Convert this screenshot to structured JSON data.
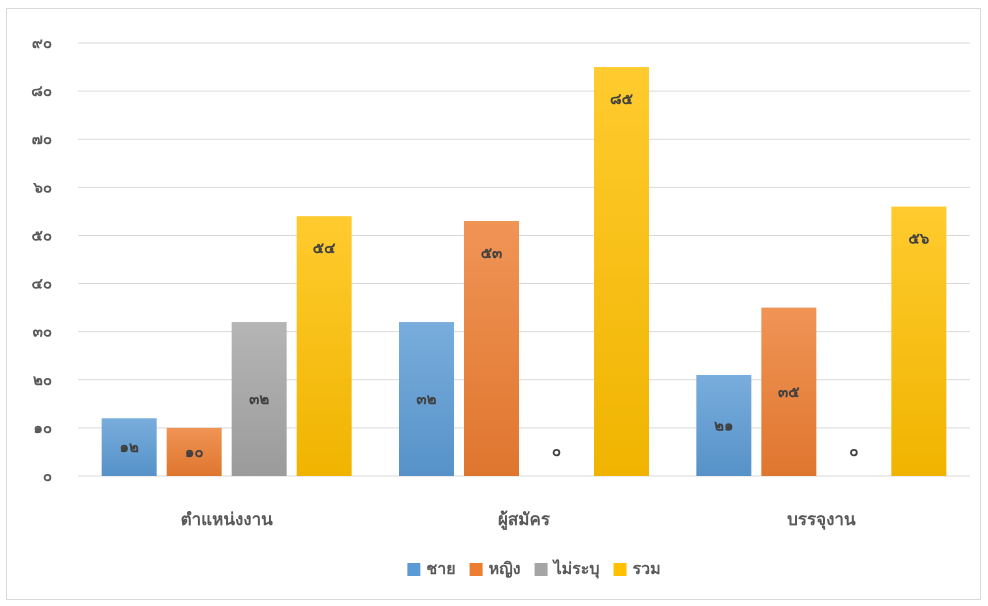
{
  "chart_data": {
    "type": "bar",
    "title": "",
    "xlabel": "",
    "ylabel": "",
    "ylim": [
      0,
      90
    ],
    "yticks": [
      0,
      10,
      20,
      30,
      40,
      50,
      60,
      70,
      80,
      90
    ],
    "ytick_labels": [
      "๐",
      "๑๐",
      "๒๐",
      "๓๐",
      "๔๐",
      "๕๐",
      "๖๐",
      "๗๐",
      "๘๐",
      "๙๐"
    ],
    "grid": true,
    "legend_position": "bottom",
    "categories": [
      "ตำแหน่งงาน",
      "ผู้สมัคร",
      "บรรจุงาน"
    ],
    "series": [
      {
        "name": "ชาย",
        "color": "#5b9bd5",
        "values": [
          12,
          32,
          21
        ],
        "labels": [
          "๑๒",
          "๓๒",
          "๒๑"
        ]
      },
      {
        "name": "หญิง",
        "color": "#ed7d31",
        "values": [
          10,
          53,
          35
        ],
        "labels": [
          "๑๐",
          "๕๓",
          "๓๕"
        ]
      },
      {
        "name": "ไม่ระบุ",
        "color": "#a5a5a5",
        "values": [
          32,
          0,
          0
        ],
        "labels": [
          "๓๒",
          "๐",
          "๐"
        ]
      },
      {
        "name": "รวม",
        "color": "#ffc000",
        "values": [
          54,
          85,
          56
        ],
        "labels": [
          "๕๔",
          "๘๕",
          "๕๖"
        ]
      }
    ]
  }
}
